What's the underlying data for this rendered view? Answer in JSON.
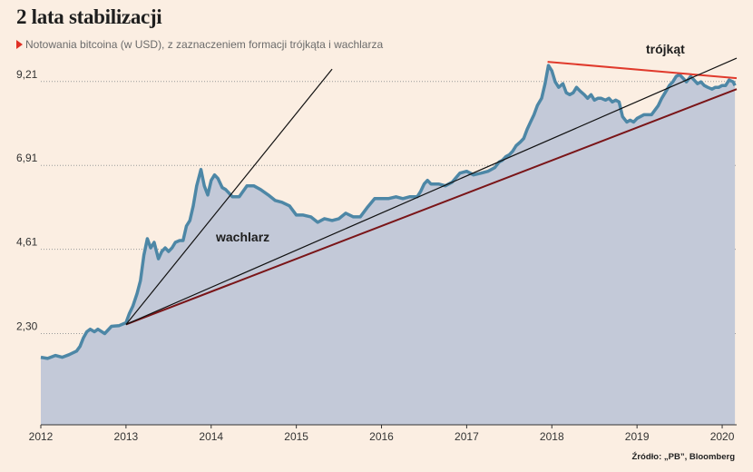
{
  "title": "2 lata stabilizacji",
  "subtitle": "Notowania bitcoina (w USD), z zaznaczeniem formacji trójkąta i wachlarza",
  "source": "Źródło: „PB”, Bloomberg",
  "colors": {
    "background": "#fbeee2",
    "area_fill": "#c3c9d8",
    "price_line": "#4d87a6",
    "triangle_top": "#e03a2c",
    "support_line": "#7a1518",
    "fan_lines": "#111111",
    "grid": "#9a9a9a",
    "marker": "#e03025"
  },
  "chart_data": {
    "type": "area",
    "title": "2 lata stabilizacji",
    "subtitle": "Notowania bitcoina (w USD), z zaznaczeniem formacji trójkąta i wachlarza",
    "xlabel": "",
    "ylabel": "",
    "xlim": [
      2012,
      2020.17
    ],
    "ylim": [
      -0.2,
      10.2
    ],
    "y_ticks": [
      2.3,
      4.61,
      6.91,
      9.21
    ],
    "y_tick_labels": [
      "2,30",
      "4,61",
      "6,91",
      "9,21"
    ],
    "x_ticks": [
      2012,
      2013,
      2014,
      2015,
      2016,
      2017,
      2018,
      2019,
      2020
    ],
    "x_tick_labels": [
      "2012",
      "2013",
      "2014",
      "2015",
      "2016",
      "2017",
      "2018",
      "2019",
      "2020"
    ],
    "grid": "horizontal dotted",
    "series": [
      {
        "x": [
          2012.0,
          2012.08,
          2012.17,
          2012.25,
          2012.33,
          2012.42,
          2012.46,
          2012.5,
          2012.54,
          2012.58,
          2012.63,
          2012.67,
          2012.75,
          2012.83,
          2012.92,
          2013.0,
          2013.04,
          2013.08,
          2013.13,
          2013.17,
          2013.21,
          2013.25,
          2013.29,
          2013.33,
          2013.38,
          2013.42,
          2013.46,
          2013.5,
          2013.54,
          2013.58,
          2013.63,
          2013.67,
          2013.71,
          2013.75,
          2013.79,
          2013.83,
          2013.88,
          2013.92,
          2013.96,
          2014.0,
          2014.04,
          2014.08,
          2014.13,
          2014.17,
          2014.21,
          2014.25,
          2014.33,
          2014.42,
          2014.5,
          2014.58,
          2014.67,
          2014.75,
          2014.83,
          2014.92,
          2015.0,
          2015.08,
          2015.17,
          2015.25,
          2015.33,
          2015.42,
          2015.5,
          2015.58,
          2015.67,
          2015.75,
          2015.83,
          2015.92,
          2016.0,
          2016.08,
          2016.17,
          2016.25,
          2016.33,
          2016.42,
          2016.46,
          2016.5,
          2016.54,
          2016.58,
          2016.67,
          2016.75,
          2016.83,
          2016.92,
          2017.0,
          2017.04,
          2017.08,
          2017.17,
          2017.25,
          2017.33,
          2017.38,
          2017.42,
          2017.46,
          2017.5,
          2017.54,
          2017.58,
          2017.63,
          2017.67,
          2017.71,
          2017.75,
          2017.79,
          2017.83,
          2017.88,
          2017.92,
          2017.96,
          2018.0,
          2018.04,
          2018.08,
          2018.13,
          2018.17,
          2018.21,
          2018.25,
          2018.29,
          2018.33,
          2018.38,
          2018.42,
          2018.46,
          2018.5,
          2018.54,
          2018.58,
          2018.63,
          2018.67,
          2018.71,
          2018.75,
          2018.79,
          2018.83,
          2018.88,
          2018.92,
          2018.96,
          2019.0,
          2019.08,
          2019.17,
          2019.25,
          2019.29,
          2019.33,
          2019.38,
          2019.42,
          2019.46,
          2019.5,
          2019.54,
          2019.58,
          2019.63,
          2019.67,
          2019.71,
          2019.75,
          2019.79,
          2019.83,
          2019.88,
          2019.92,
          2019.96,
          2020.0,
          2020.04,
          2020.08,
          2020.13,
          2020.15
        ],
        "values": [
          1.65,
          1.62,
          1.7,
          1.65,
          1.72,
          1.82,
          1.95,
          2.18,
          2.35,
          2.42,
          2.35,
          2.42,
          2.3,
          2.5,
          2.52,
          2.6,
          2.85,
          3.05,
          3.4,
          3.75,
          4.45,
          4.9,
          4.65,
          4.8,
          4.35,
          4.55,
          4.65,
          4.55,
          4.65,
          4.8,
          4.85,
          4.85,
          5.25,
          5.4,
          5.8,
          6.35,
          6.8,
          6.35,
          6.1,
          6.5,
          6.65,
          6.55,
          6.3,
          6.25,
          6.15,
          6.05,
          6.05,
          6.35,
          6.35,
          6.25,
          6.1,
          5.95,
          5.9,
          5.8,
          5.55,
          5.55,
          5.5,
          5.35,
          5.45,
          5.4,
          5.45,
          5.6,
          5.5,
          5.5,
          5.75,
          6.0,
          6.0,
          6.0,
          6.05,
          6.0,
          6.05,
          6.05,
          6.2,
          6.4,
          6.5,
          6.4,
          6.4,
          6.35,
          6.45,
          6.7,
          6.75,
          6.7,
          6.65,
          6.7,
          6.75,
          6.85,
          7.0,
          7.05,
          7.15,
          7.2,
          7.3,
          7.45,
          7.55,
          7.65,
          7.9,
          8.1,
          8.3,
          8.55,
          8.75,
          9.15,
          9.65,
          9.5,
          9.2,
          9.05,
          9.15,
          8.9,
          8.85,
          8.9,
          9.05,
          8.95,
          8.85,
          8.75,
          8.85,
          8.7,
          8.75,
          8.75,
          8.7,
          8.75,
          8.65,
          8.7,
          8.65,
          8.25,
          8.1,
          8.15,
          8.1,
          8.2,
          8.3,
          8.3,
          8.55,
          8.75,
          8.9,
          9.1,
          9.2,
          9.35,
          9.4,
          9.3,
          9.2,
          9.35,
          9.25,
          9.15,
          9.2,
          9.1,
          9.05,
          9.0,
          9.05,
          9.05,
          9.1,
          9.1,
          9.25,
          9.2,
          9.1
        ]
      }
    ],
    "trend_lines": [
      {
        "color": "#e03a2c",
        "x": [
          2017.95,
          2020.17
        ],
        "values": [
          9.75,
          9.3
        ]
      },
      {
        "color": "#7a1518",
        "x": [
          2013.0,
          2020.17
        ],
        "values": [
          2.55,
          9.0
        ]
      },
      {
        "color": "#111111",
        "x": [
          2013.0,
          2020.17
        ],
        "values": [
          2.55,
          9.85
        ]
      },
      {
        "color": "#111111",
        "x": [
          2013.0,
          2015.42
        ],
        "values": [
          2.55,
          9.55
        ]
      }
    ],
    "annotations": [
      "trójkąt",
      "wachlarz"
    ]
  }
}
